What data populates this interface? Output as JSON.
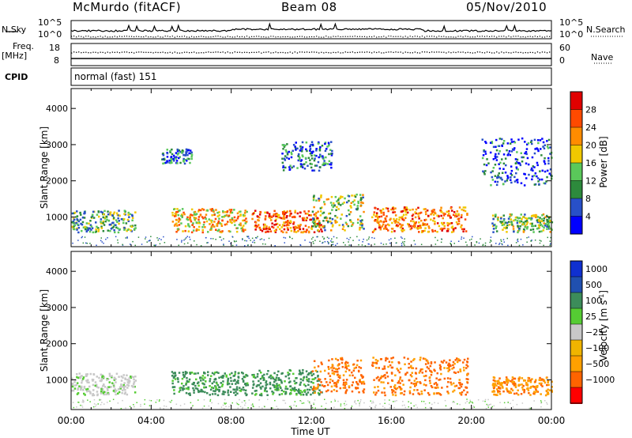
{
  "header": {
    "station": "McMurdo (fitACF)",
    "beam": "Beam 08",
    "date": "05/Nov/2010"
  },
  "summary_panels": {
    "nsky_label": "N.Sky",
    "nsearch_label": "N.Search",
    "noise_ticks": [
      "10^5",
      "10^0"
    ],
    "freq_label": "Freq.",
    "freq_unit": "[MHz]",
    "freq_ticks": [
      "18",
      "8"
    ],
    "nave_label": "Nave",
    "nave_ticks": [
      "60",
      "0"
    ],
    "cpid_label": "CPID",
    "cpid_value": "normal (fast) 151"
  },
  "colors": {
    "power": [
      "#0000ff",
      "#2850c8",
      "#2d8a3c",
      "#5ac85a",
      "#f0c800",
      "#ff8c00",
      "#ff4a00",
      "#e00000"
    ],
    "velocity": [
      "#ff0000",
      "#ff6400",
      "#ffa000",
      "#f0b400",
      "#c8c8c8",
      "#55cc33",
      "#3c8c5a",
      "#2050b0",
      "#1030d0"
    ]
  },
  "chart_data": [
    {
      "type": "heatmap",
      "quantity": "power",
      "ylabel": "Slant Range [km]",
      "ylim": [
        180,
        4550
      ],
      "yticks": [
        1000,
        2000,
        3000,
        4000
      ],
      "xlabel": "Time UT",
      "xlim": [
        "00:00",
        "24:00"
      ],
      "xticks": [
        "00:00",
        "04:00",
        "08:00",
        "12:00",
        "16:00",
        "20:00",
        "00:00"
      ],
      "colorbar": {
        "label": "Power [dB]",
        "ticks": [
          "4",
          "8",
          "12",
          "16",
          "20",
          "24",
          "28"
        ],
        "range": [
          0,
          32
        ]
      },
      "echo_regions": [
        {
          "t_start": 0.0,
          "t_end": 3.2,
          "r_min": 600,
          "r_max": 1200,
          "level": 12
        },
        {
          "t_start": 5.0,
          "t_end": 8.8,
          "r_min": 600,
          "r_max": 1250,
          "level": 20
        },
        {
          "t_start": 9.0,
          "t_end": 12.5,
          "r_min": 600,
          "r_max": 1200,
          "level": 26
        },
        {
          "t_start": 12.0,
          "t_end": 14.6,
          "r_min": 650,
          "r_max": 1650,
          "level": 14
        },
        {
          "t_start": 15.0,
          "t_end": 19.8,
          "r_min": 600,
          "r_max": 1300,
          "level": 24
        },
        {
          "t_start": 21.0,
          "t_end": 24.0,
          "r_min": 600,
          "r_max": 1100,
          "level": 14
        },
        {
          "t_start": 4.5,
          "t_end": 6.0,
          "r_min": 2500,
          "r_max": 2900,
          "level": 8
        },
        {
          "t_start": 10.5,
          "t_end": 13.0,
          "r_min": 2300,
          "r_max": 3100,
          "level": 7
        },
        {
          "t_start": 20.5,
          "t_end": 24.0,
          "r_min": 1900,
          "r_max": 3200,
          "level": 6
        }
      ]
    },
    {
      "type": "heatmap",
      "quantity": "velocity",
      "ylabel": "Slant Range [km]",
      "ylim": [
        180,
        4550
      ],
      "yticks": [
        1000,
        2000,
        3000,
        4000
      ],
      "xlabel": "Time UT",
      "xlim": [
        "00:00",
        "24:00"
      ],
      "xticks": [
        "00:00",
        "04:00",
        "08:00",
        "12:00",
        "16:00",
        "20:00",
        "00:00"
      ],
      "colorbar": {
        "label": "Velocity [m s^-1]",
        "ticks": [
          "1000",
          "500",
          "100",
          "25",
          "−25",
          "−100",
          "−500",
          "−1000"
        ]
      },
      "echo_regions": [
        {
          "t_start": 0.0,
          "t_end": 3.2,
          "r_min": 600,
          "r_max": 1200,
          "value": 0
        },
        {
          "t_start": 5.0,
          "t_end": 8.8,
          "r_min": 600,
          "r_max": 1250,
          "value": 150
        },
        {
          "t_start": 9.0,
          "t_end": 12.5,
          "r_min": 600,
          "r_max": 1300,
          "value": 150
        },
        {
          "t_start": 12.0,
          "t_end": 14.6,
          "r_min": 650,
          "r_max": 1650,
          "value": -150
        },
        {
          "t_start": 15.0,
          "t_end": 19.8,
          "r_min": 600,
          "r_max": 1650,
          "value": -150
        },
        {
          "t_start": 21.0,
          "t_end": 24.0,
          "r_min": 600,
          "r_max": 1100,
          "value": -50
        }
      ]
    }
  ],
  "x_axis": {
    "label": "Time UT",
    "ticks": [
      "00:00",
      "04:00",
      "08:00",
      "12:00",
      "16:00",
      "20:00",
      "00:00"
    ]
  }
}
